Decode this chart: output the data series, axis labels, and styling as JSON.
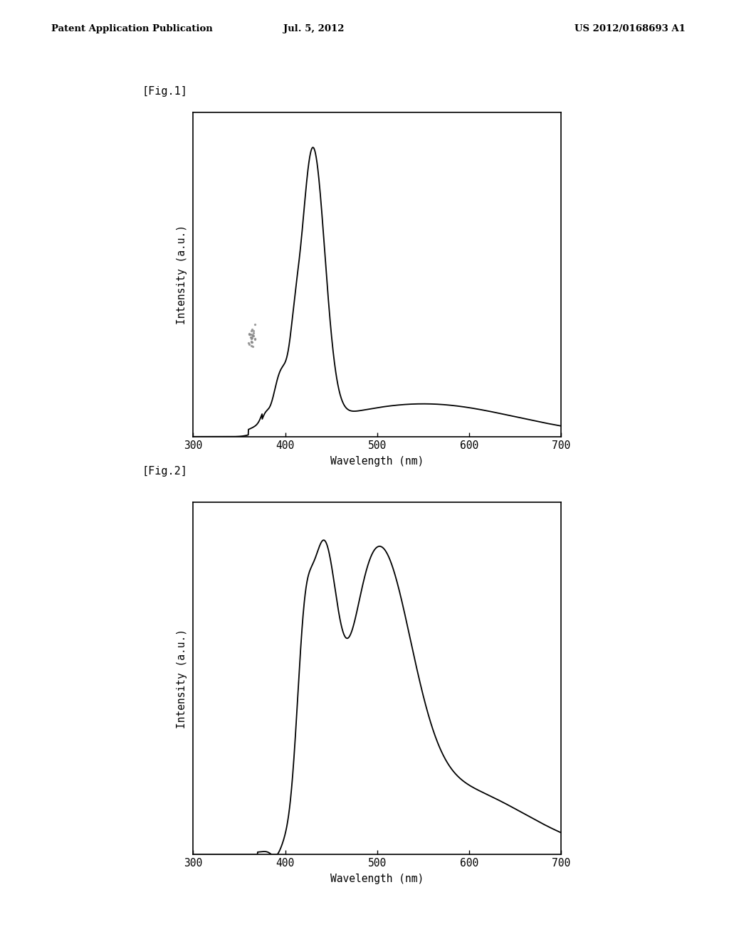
{
  "header_left": "Patent Application Publication",
  "header_center": "Jul. 5, 2012",
  "header_right": "US 2012/0168693 A1",
  "fig1_label": "[Fig.1]",
  "fig2_label": "[Fig.2]",
  "xlabel": "Wavelength (nm)",
  "ylabel": "Intensity (a.u.)",
  "xmin": 300,
  "xmax": 700,
  "xticks": [
    300,
    400,
    500,
    600,
    700
  ],
  "background_color": "#ffffff",
  "line_color": "#000000"
}
